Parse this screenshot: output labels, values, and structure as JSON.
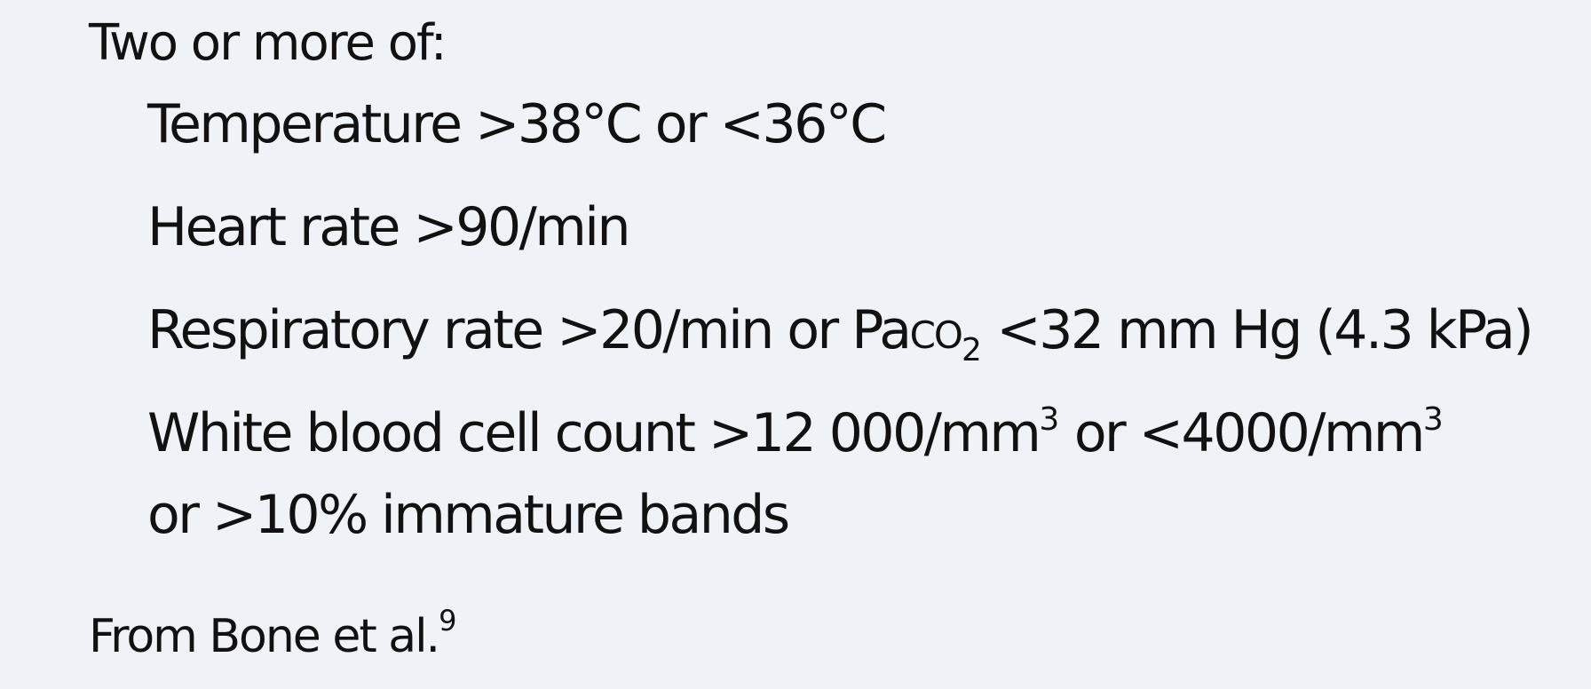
{
  "criteria": {
    "heading": "Two or more of:",
    "temperature": "Temperature >38°C or <36°C",
    "heart_rate": "Heart rate >90/min",
    "respiratory": {
      "prefix": "Respiratory rate >20/min or ",
      "pa": "Pa",
      "co": "co",
      "sub": "2",
      "suffix": " <32 mm Hg (4.3 kPa)"
    },
    "wbc": {
      "part1": "White blood cell count >12 000/mm",
      "sup1": "3",
      "part2": " or <4000/mm",
      "sup2": "3",
      "line2": "or >10% immature bands"
    }
  },
  "source": {
    "text": "From Bone et al.",
    "ref": "9"
  }
}
